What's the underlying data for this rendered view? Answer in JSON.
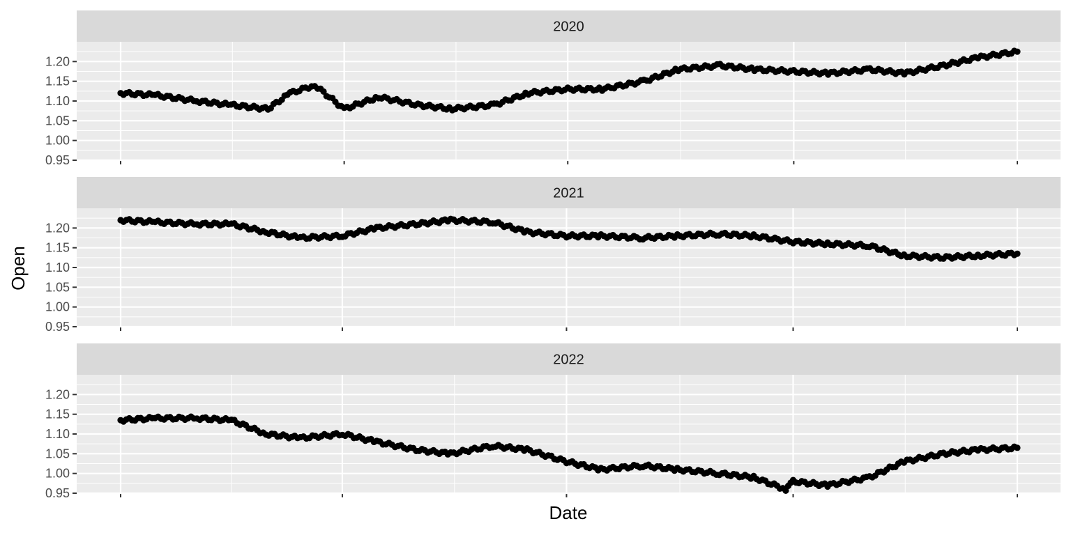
{
  "chart_data": {
    "type": "scatter",
    "facet_by": "year",
    "xlabel": "Date",
    "ylabel": "Open",
    "ylim": [
      0.95,
      1.25
    ],
    "yticks": [
      "0.95",
      "1.00",
      "1.05",
      "1.10",
      "1.15",
      "1.20"
    ],
    "x_tick_labels_shown": false,
    "grid": true,
    "legend": "none",
    "colors": {
      "panel_bg": "#ebebeb",
      "strip_bg": "#d9d9d9",
      "grid": "#ffffff",
      "points": "#000000"
    },
    "panels": [
      {
        "label": "2020",
        "x": [
          "2020-01-01",
          "2020-01-15",
          "2020-02-01",
          "2020-02-15",
          "2020-03-01",
          "2020-03-10",
          "2020-03-20",
          "2020-04-01",
          "2020-04-15",
          "2020-05-01",
          "2020-05-15",
          "2020-06-01",
          "2020-06-15",
          "2020-07-01",
          "2020-07-15",
          "2020-08-01",
          "2020-08-15",
          "2020-09-01",
          "2020-09-15",
          "2020-10-01",
          "2020-10-15",
          "2020-11-01",
          "2020-11-15",
          "2020-12-01",
          "2020-12-15",
          "2020-12-31"
        ],
        "values": [
          1.12,
          1.115,
          1.1,
          1.09,
          1.08,
          1.12,
          1.14,
          1.08,
          1.11,
          1.09,
          1.08,
          1.09,
          1.12,
          1.13,
          1.13,
          1.15,
          1.18,
          1.19,
          1.18,
          1.175,
          1.17,
          1.18,
          1.17,
          1.19,
          1.21,
          1.225
        ]
      },
      {
        "label": "2021",
        "x": [
          "2021-01-01",
          "2021-01-15",
          "2021-02-01",
          "2021-02-15",
          "2021-03-01",
          "2021-03-15",
          "2021-04-01",
          "2021-04-15",
          "2021-05-01",
          "2021-05-15",
          "2021-06-01",
          "2021-06-15",
          "2021-07-01",
          "2021-07-15",
          "2021-08-01",
          "2021-08-15",
          "2021-09-01",
          "2021-09-15",
          "2021-10-01",
          "2021-10-15",
          "2021-11-01",
          "2021-11-15",
          "2021-12-01",
          "2021-12-15",
          "2021-12-31"
        ],
        "values": [
          1.22,
          1.215,
          1.21,
          1.21,
          1.19,
          1.175,
          1.18,
          1.2,
          1.21,
          1.22,
          1.215,
          1.19,
          1.18,
          1.18,
          1.175,
          1.18,
          1.185,
          1.18,
          1.165,
          1.16,
          1.155,
          1.13,
          1.125,
          1.13,
          1.135
        ]
      },
      {
        "label": "2022",
        "x": [
          "2022-01-01",
          "2022-01-15",
          "2022-02-01",
          "2022-02-15",
          "2022-03-01",
          "2022-03-15",
          "2022-04-01",
          "2022-04-15",
          "2022-05-01",
          "2022-05-15",
          "2022-06-01",
          "2022-06-15",
          "2022-07-01",
          "2022-07-15",
          "2022-08-01",
          "2022-08-15",
          "2022-09-01",
          "2022-09-15",
          "2022-09-28",
          "2022-10-01",
          "2022-10-15",
          "2022-11-01",
          "2022-11-15",
          "2022-12-01",
          "2022-12-15",
          "2022-12-31"
        ],
        "values": [
          1.135,
          1.14,
          1.14,
          1.135,
          1.1,
          1.09,
          1.1,
          1.08,
          1.06,
          1.05,
          1.07,
          1.06,
          1.03,
          1.01,
          1.02,
          1.01,
          1.0,
          0.99,
          0.96,
          0.98,
          0.97,
          0.99,
          1.03,
          1.05,
          1.06,
          1.065
        ]
      }
    ]
  }
}
